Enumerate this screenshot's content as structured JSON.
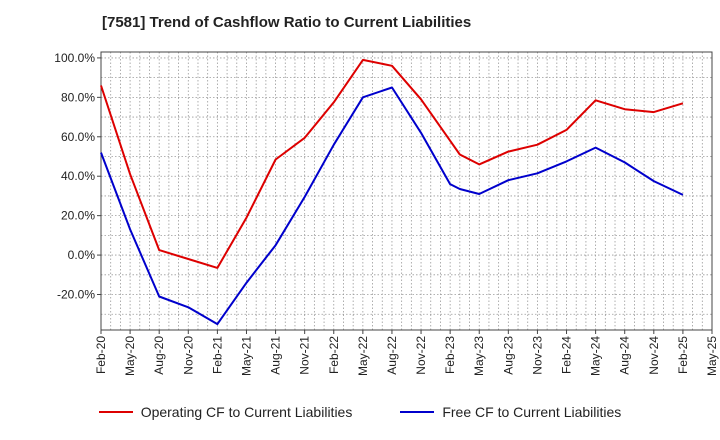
{
  "chart_data": {
    "type": "line",
    "title": "[7581]  Trend of Cashflow Ratio to Current Liabilities",
    "xlabel": "",
    "ylabel": "",
    "x_tick_labels": [
      "Feb-20",
      "May-20",
      "Aug-20",
      "Nov-20",
      "Feb-21",
      "May-21",
      "Aug-21",
      "Nov-21",
      "Feb-22",
      "May-22",
      "Aug-22",
      "Nov-22",
      "Feb-23",
      "May-23",
      "Aug-23",
      "Nov-23",
      "Feb-24",
      "May-24",
      "Aug-24",
      "Nov-24",
      "Feb-25",
      "May-25"
    ],
    "y_tick_labels": [
      "100.0%",
      "80.0%",
      "60.0%",
      "40.0%",
      "20.0%",
      "0.0%",
      "-20.0%"
    ],
    "y_ticks": [
      100,
      80,
      60,
      40,
      20,
      0,
      -20
    ],
    "ylim": [
      -38,
      103
    ],
    "grid": true,
    "legend_position": "bottom-center",
    "series": [
      {
        "name": "Operating CF to Current Liabilities",
        "color": "#dd0000",
        "points": [
          [
            "Feb-20",
            86
          ],
          [
            "May-20",
            41
          ],
          [
            "Aug-20",
            2.5
          ],
          [
            "Nov-20",
            -2
          ],
          [
            "Feb-21",
            -6.5
          ],
          [
            "May-21",
            19
          ],
          [
            "Aug-21",
            48.5
          ],
          [
            "Nov-21",
            59.5
          ],
          [
            "Feb-22",
            77.5
          ],
          [
            "May-22",
            99
          ],
          [
            "Aug-22",
            96
          ],
          [
            "Nov-22",
            79
          ],
          [
            "Feb-23",
            58
          ],
          [
            "Mar-23",
            51
          ],
          [
            "May-23",
            46
          ],
          [
            "Aug-23",
            52.5
          ],
          [
            "Nov-23",
            56
          ],
          [
            "Feb-24",
            63.5
          ],
          [
            "May-24",
            78.5
          ],
          [
            "Aug-24",
            74
          ],
          [
            "Nov-24",
            72.5
          ],
          [
            "Feb-25",
            77
          ]
        ]
      },
      {
        "name": "Free CF to Current Liabilities",
        "color": "#0000cc",
        "points": [
          [
            "Feb-20",
            52
          ],
          [
            "May-20",
            13
          ],
          [
            "Aug-20",
            -21
          ],
          [
            "Nov-20",
            -26.5
          ],
          [
            "Feb-21",
            -35
          ],
          [
            "May-21",
            -14
          ],
          [
            "Aug-21",
            5
          ],
          [
            "Nov-21",
            29.5
          ],
          [
            "Feb-22",
            56
          ],
          [
            "May-22",
            80
          ],
          [
            "Aug-22",
            85
          ],
          [
            "Nov-22",
            62
          ],
          [
            "Feb-23",
            36
          ],
          [
            "Mar-23",
            33.5
          ],
          [
            "May-23",
            31
          ],
          [
            "Aug-23",
            38
          ],
          [
            "Nov-23",
            41.5
          ],
          [
            "Feb-24",
            47.5
          ],
          [
            "May-24",
            54.5
          ],
          [
            "Aug-24",
            47
          ],
          [
            "Nov-24",
            37.5
          ],
          [
            "Feb-25",
            30.5
          ]
        ]
      }
    ]
  }
}
